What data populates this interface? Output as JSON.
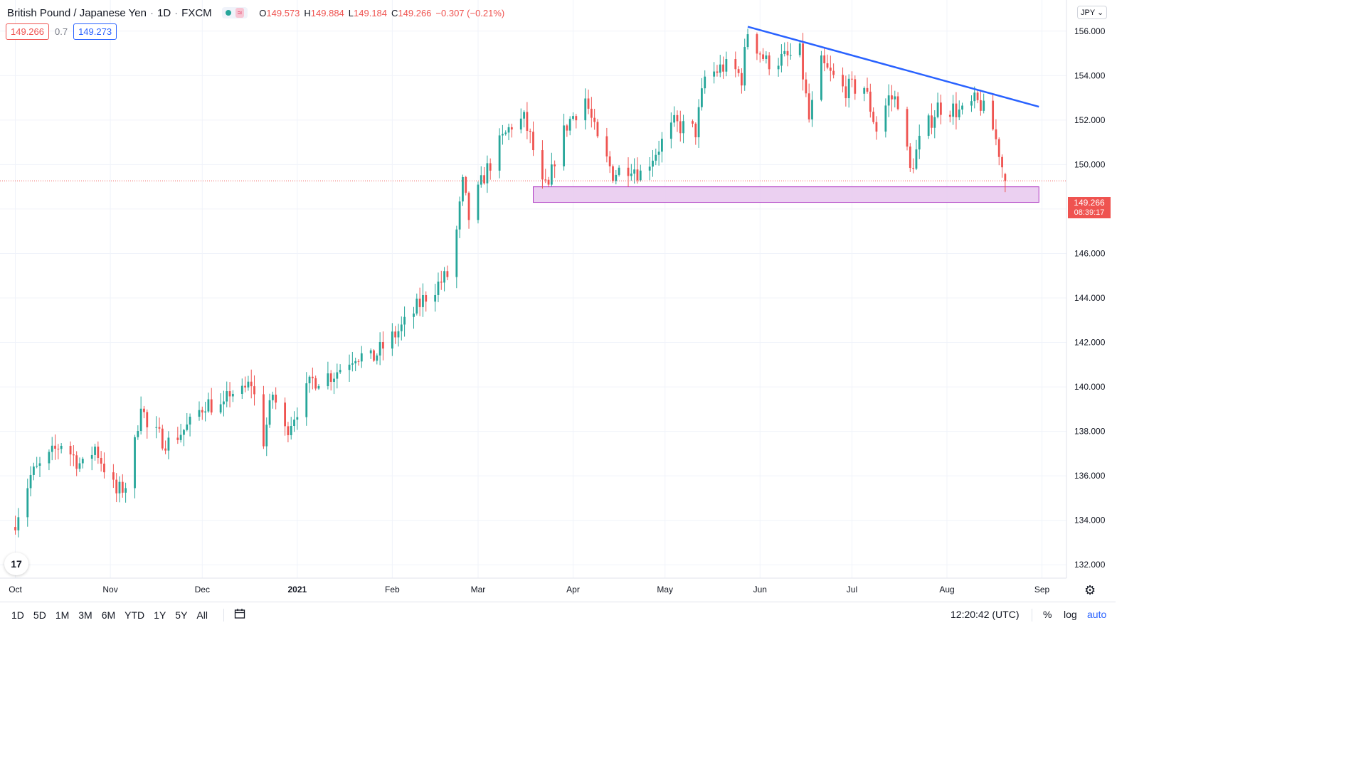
{
  "header": {
    "symbol_name": "British Pound / Japanese Yen",
    "interval": "1D",
    "exchange": "FXCM",
    "wave_icon_glyph": "≈",
    "ohlc": {
      "open_label": "O",
      "open": "149.573",
      "high_label": "H",
      "high": "149.884",
      "low_label": "L",
      "low": "149.184",
      "close_label": "C",
      "close": "149.266",
      "change": "−0.307 (−0.21%)"
    }
  },
  "quote": {
    "bid": "149.266",
    "spread": "0.7",
    "ask": "149.273"
  },
  "currency_selector": "JPY ⌄",
  "price_tag": {
    "price": "149.266",
    "countdown": "08:39:17"
  },
  "logo_text": "17",
  "bottom_bar": {
    "ranges": [
      "1D",
      "5D",
      "1M",
      "3M",
      "6M",
      "YTD",
      "1Y",
      "5Y",
      "All"
    ],
    "time": "12:20:42 (UTC)",
    "percent": "%",
    "log": "log",
    "auto": "auto"
  },
  "colors": {
    "up": "#26a69a",
    "down": "#ef5350",
    "trendline": "#2962ff",
    "zone_fill": "#e8c8ef",
    "zone_border": "#b03cc4",
    "grid": "#f0f3fa"
  },
  "chart_data": {
    "type": "candlestick",
    "series_name": "GBPJPY",
    "ylim": [
      131.4,
      157.4
    ],
    "y_ticks": [
      132,
      134,
      136,
      138,
      140,
      142,
      144,
      146,
      148,
      150,
      152,
      154,
      156
    ],
    "y_tick_labels": [
      "132.000",
      "134.000",
      "136.000",
      "138.000",
      "140.000",
      "142.000",
      "144.000",
      "146.000",
      "148.000",
      "150.000",
      "152.000",
      "154.000",
      "156.000"
    ],
    "x_labels": [
      "Oct",
      "Nov",
      "Dec",
      "2021",
      "Feb",
      "Mar",
      "Apr",
      "May",
      "Jun",
      "Jul",
      "Aug",
      "Sep"
    ],
    "x_label_dates": [
      "2020-10-01",
      "2020-11-01",
      "2020-12-01",
      "2021-01-01",
      "2021-02-01",
      "2021-03-01",
      "2021-04-01",
      "2021-05-01",
      "2021-06-01",
      "2021-07-01",
      "2021-08-01",
      "2021-09-01"
    ],
    "last_price": 149.266,
    "trendline": {
      "start": [
        "2021-05-28",
        156.2
      ],
      "end": [
        "2021-08-31",
        152.6
      ]
    },
    "support_zone": {
      "start": "2021-03-19",
      "end": "2021-08-31",
      "low": 148.3,
      "high": 149.0
    },
    "anchors": [
      [
        "2020-10-01",
        134.0
      ],
      [
        "2020-10-06",
        136.0
      ],
      [
        "2020-10-12",
        136.8
      ],
      [
        "2020-10-16",
        137.5
      ],
      [
        "2020-10-23",
        136.4
      ],
      [
        "2020-10-27",
        137.3
      ],
      [
        "2020-11-03",
        135.2
      ],
      [
        "2020-11-06",
        135.6
      ],
      [
        "2020-11-09",
        137.4
      ],
      [
        "2020-11-11",
        139.4
      ],
      [
        "2020-11-13",
        138.1
      ],
      [
        "2020-11-20",
        137.5
      ],
      [
        "2020-11-27",
        138.3
      ],
      [
        "2020-12-02",
        139.3
      ],
      [
        "2020-12-08",
        139.0
      ],
      [
        "2020-12-10",
        139.8
      ],
      [
        "2020-12-14",
        139.7
      ],
      [
        "2020-12-17",
        140.2
      ],
      [
        "2020-12-21",
        137.6
      ],
      [
        "2020-12-24",
        139.7
      ],
      [
        "2020-12-28",
        138.0
      ],
      [
        "2021-01-06",
        140.3
      ],
      [
        "2021-01-13",
        140.6
      ],
      [
        "2021-01-20",
        141.5
      ],
      [
        "2021-01-25",
        141.2
      ],
      [
        "2021-02-05",
        142.8
      ],
      [
        "2021-02-12",
        144.1
      ],
      [
        "2021-02-19",
        145.0
      ],
      [
        "2021-02-22",
        147.0
      ],
      [
        "2021-02-24",
        149.1
      ],
      [
        "2021-02-26",
        147.6
      ],
      [
        "2021-03-03",
        149.5
      ],
      [
        "2021-03-08",
        150.9
      ],
      [
        "2021-03-12",
        151.8
      ],
      [
        "2021-03-16",
        152.0
      ],
      [
        "2021-03-18",
        151.2
      ],
      [
        "2021-03-22",
        149.0
      ],
      [
        "2021-03-24",
        148.9
      ],
      [
        "2021-03-26",
        150.3
      ],
      [
        "2021-03-30",
        151.8
      ],
      [
        "2021-04-05",
        153.0
      ],
      [
        "2021-04-09",
        151.0
      ],
      [
        "2021-04-14",
        149.6
      ],
      [
        "2021-04-20",
        150.0
      ],
      [
        "2021-04-23",
        149.6
      ],
      [
        "2021-04-28",
        150.6
      ],
      [
        "2021-05-04",
        151.8
      ],
      [
        "2021-05-11",
        151.5
      ],
      [
        "2021-05-14",
        153.9
      ],
      [
        "2021-05-20",
        154.4
      ],
      [
        "2021-05-24",
        154.2
      ],
      [
        "2021-05-26",
        153.9
      ],
      [
        "2021-05-28",
        156.0
      ],
      [
        "2021-06-03",
        154.6
      ],
      [
        "2021-06-10",
        154.8
      ],
      [
        "2021-06-14",
        155.0
      ],
      [
        "2021-06-17",
        152.0
      ],
      [
        "2021-06-21",
        154.5
      ],
      [
        "2021-06-28",
        153.4
      ],
      [
        "2021-07-05",
        153.5
      ],
      [
        "2021-07-09",
        151.6
      ],
      [
        "2021-07-13",
        153.0
      ],
      [
        "2021-07-16",
        152.9
      ],
      [
        "2021-07-20",
        149.7
      ],
      [
        "2021-07-23",
        151.0
      ],
      [
        "2021-07-29",
        152.6
      ],
      [
        "2021-08-03",
        152.5
      ],
      [
        "2021-08-06",
        152.3
      ],
      [
        "2021-08-10",
        152.8
      ],
      [
        "2021-08-12",
        152.7
      ],
      [
        "2021-08-16",
        151.6
      ],
      [
        "2021-08-18",
        150.6
      ],
      [
        "2021-08-20",
        149.27
      ]
    ]
  }
}
